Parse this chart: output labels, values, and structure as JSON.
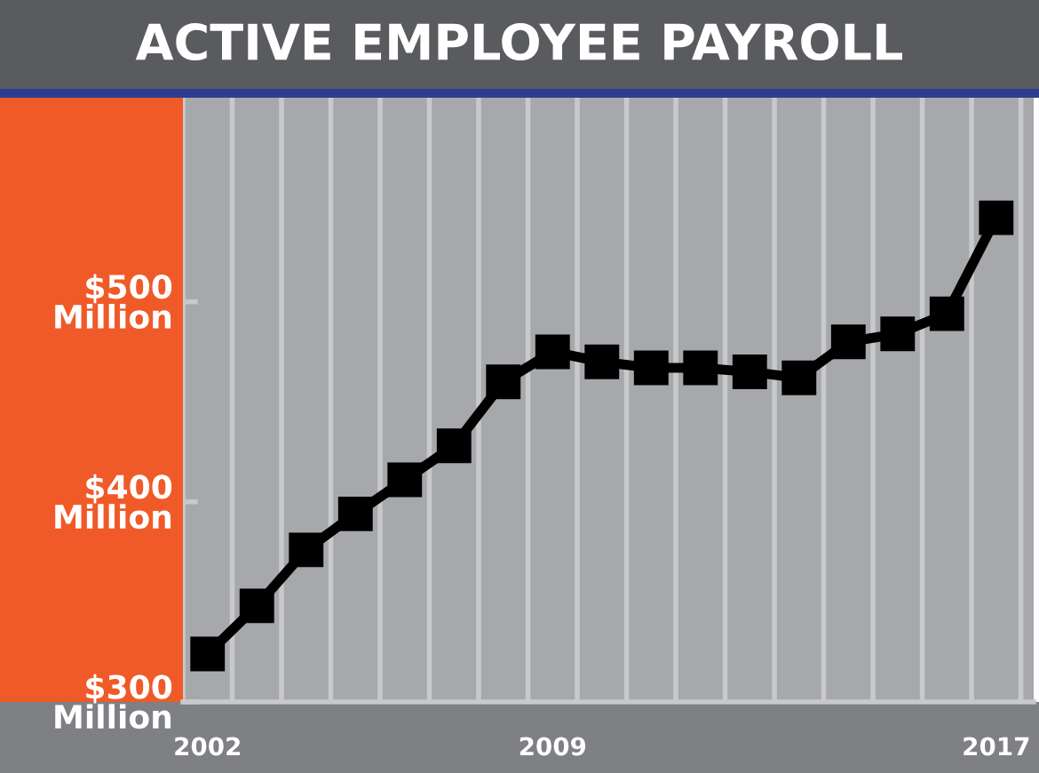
{
  "chart_data": {
    "type": "line",
    "title": "ACTIVE EMPLOYEE PAYROLL",
    "categories": [
      "2002",
      null,
      null,
      null,
      null,
      null,
      null,
      "2009",
      null,
      null,
      null,
      null,
      null,
      null,
      null,
      null,
      "2017"
    ],
    "series": [
      {
        "color": "#000000",
        "values": [
          324,
          348,
          376,
          394,
          411,
          428,
          460,
          475,
          470,
          467,
          467,
          465,
          462,
          480,
          484,
          494,
          542
        ]
      }
    ],
    "ylim": [
      300,
      602
    ],
    "yticks": [
      {
        "value": 300,
        "label": "$300\nMillion"
      },
      {
        "value": 400,
        "label": "$400\nMillion"
      },
      {
        "value": 500,
        "label": "$500\nMillion"
      }
    ],
    "grid": "x",
    "marker": "square",
    "line_style": "solid",
    "legend": false
  }
}
